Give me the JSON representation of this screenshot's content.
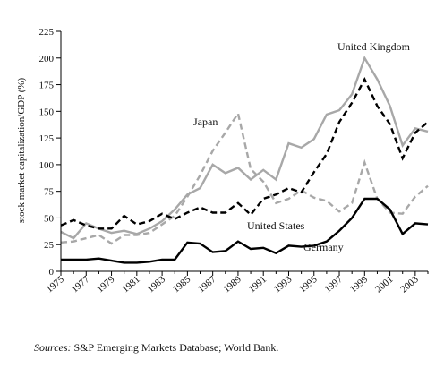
{
  "chart_data": {
    "type": "line",
    "ylabel": "stock market capitalization/GDP (%)",
    "xlabel": "",
    "ylim": [
      0,
      225
    ],
    "yticks": [
      0,
      25,
      50,
      75,
      100,
      125,
      150,
      175,
      200,
      225
    ],
    "xlim": [
      1975,
      2004
    ],
    "xtick_labels": [
      "1975",
      "1977",
      "1979",
      "1981",
      "1983",
      "1985",
      "1987",
      "1989",
      "1991",
      "1993",
      "1995",
      "1997",
      "1999",
      "2001",
      "2003"
    ],
    "x": [
      1975,
      1976,
      1977,
      1978,
      1979,
      1980,
      1981,
      1982,
      1983,
      1984,
      1985,
      1986,
      1987,
      1988,
      1989,
      1990,
      1991,
      1992,
      1993,
      1994,
      1995,
      1996,
      1997,
      1998,
      1999,
      2000,
      2001,
      2002,
      2003,
      2004
    ],
    "series": [
      {
        "name": "United Kingdom",
        "style": "solid",
        "color": "#a8a8a8",
        "values": [
          37,
          31,
          45,
          40,
          36,
          38,
          35,
          40,
          47,
          58,
          72,
          78,
          100,
          92,
          97,
          86,
          95,
          86,
          120,
          116,
          124,
          147,
          151,
          166,
          200,
          180,
          155,
          118,
          134,
          131
        ]
      },
      {
        "name": "Japan",
        "style": "dashed",
        "color": "#a8a8a8",
        "values": [
          27,
          28,
          31,
          34,
          26,
          34,
          34,
          36,
          44,
          52,
          70,
          90,
          113,
          130,
          148,
          96,
          84,
          64,
          68,
          76,
          69,
          66,
          56,
          64,
          102,
          68,
          55,
          54,
          70,
          80
        ]
      },
      {
        "name": "United States",
        "style": "dashed",
        "color": "#000000",
        "values": [
          43,
          48,
          43,
          40,
          40,
          52,
          44,
          47,
          54,
          49,
          55,
          60,
          55,
          55,
          64,
          53,
          68,
          72,
          78,
          74,
          93,
          110,
          140,
          158,
          180,
          155,
          138,
          106,
          130,
          140
        ]
      },
      {
        "name": "Germany",
        "style": "solid",
        "color": "#000000",
        "values": [
          11,
          11,
          11,
          12,
          10,
          8,
          8,
          9,
          11,
          11,
          27,
          26,
          18,
          19,
          28,
          21,
          22,
          17,
          24,
          23,
          24,
          28,
          38,
          50,
          68,
          68,
          58,
          35,
          45,
          44
        ]
      }
    ]
  },
  "source_note": {
    "lead": "Sources:",
    "text": " S&P Emerging Markets Database; World Bank."
  }
}
